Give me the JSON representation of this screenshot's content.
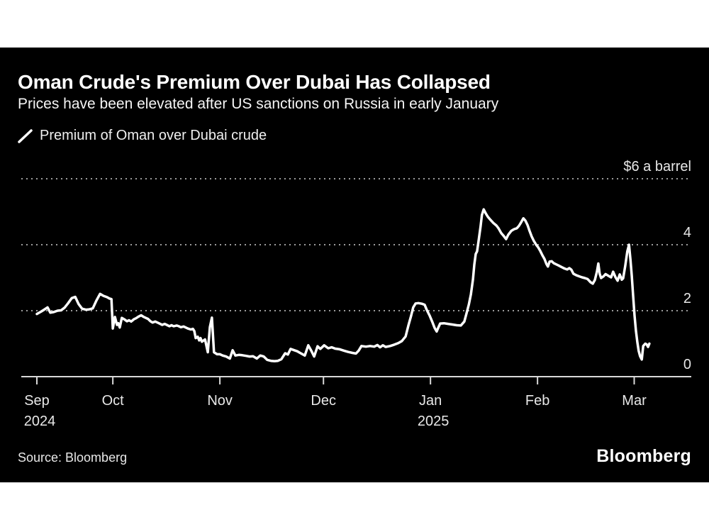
{
  "header": {
    "title": "Oman Crude's Premium Over Dubai Has Collapsed",
    "subtitle": "Prices have been elevated after US sanctions on Russia in early January"
  },
  "legend": {
    "label": "Premium of Oman over Dubai crude"
  },
  "footer": {
    "source": "Source: Bloomberg",
    "logo": "Bloomberg"
  },
  "colors": {
    "card_background": "#000000",
    "line": "#ffffff",
    "gridline": "#9c9c9c",
    "axis": "#d9d9d9",
    "tick_label": "#e8e8e8"
  },
  "chart_data": {
    "type": "line",
    "title": "Oman Crude's Premium Over Dubai Has Collapsed",
    "series_name": "Premium of Oman over Dubai crude",
    "unit": "$ a barrel",
    "start_date": "2024-09-09",
    "end_date": "2025-03-06",
    "ylim": [
      0,
      6.4
    ],
    "grid": "dotted-horizontal",
    "legend_position": "top-left",
    "y_ticks": [
      {
        "label": "$6 a barrel",
        "v": 6
      },
      {
        "label": "4",
        "v": 4
      },
      {
        "label": "2",
        "v": 2
      },
      {
        "label": "0",
        "v": 0
      }
    ],
    "x_ticks": [
      {
        "label": "Sep",
        "sublabel": "2024",
        "d": 0
      },
      {
        "label": "Oct",
        "sublabel": "",
        "d": 22
      },
      {
        "label": "Nov",
        "sublabel": "",
        "d": 53
      },
      {
        "label": "Dec",
        "sublabel": "",
        "d": 83
      },
      {
        "label": "Jan",
        "sublabel": "2025",
        "d": 114
      },
      {
        "label": "Feb",
        "sublabel": "",
        "d": 145
      },
      {
        "label": "Mar",
        "sublabel": "",
        "d": 173
      }
    ],
    "points": [
      [
        0,
        1.9
      ],
      [
        1.2,
        1.97
      ],
      [
        2.1,
        2.03
      ],
      [
        3.1,
        2.1
      ],
      [
        3.9,
        1.94
      ],
      [
        4.9,
        1.96
      ],
      [
        6,
        2.0
      ],
      [
        7,
        2.01
      ],
      [
        8,
        2.09
      ],
      [
        9,
        2.22
      ],
      [
        10.1,
        2.38
      ],
      [
        11.1,
        2.42
      ],
      [
        12.1,
        2.2
      ],
      [
        13.1,
        2.06
      ],
      [
        14.2,
        2.03
      ],
      [
        15.2,
        2.04
      ],
      [
        16.2,
        2.07
      ],
      [
        17.2,
        2.3
      ],
      [
        18.3,
        2.51
      ],
      [
        19.3,
        2.45
      ],
      [
        20.3,
        2.41
      ],
      [
        21,
        2.37
      ],
      [
        21.6,
        2.35
      ],
      [
        22,
        1.46
      ],
      [
        22.6,
        1.81
      ],
      [
        23.2,
        1.57
      ],
      [
        23.6,
        1.62
      ],
      [
        24,
        1.49
      ],
      [
        24.6,
        1.78
      ],
      [
        25.3,
        1.74
      ],
      [
        26.1,
        1.68
      ],
      [
        26.7,
        1.71
      ],
      [
        27.3,
        1.67
      ],
      [
        28.1,
        1.74
      ],
      [
        28.7,
        1.77
      ],
      [
        29.4,
        1.82
      ],
      [
        30.2,
        1.86
      ],
      [
        30.8,
        1.82
      ],
      [
        31.4,
        1.79
      ],
      [
        32.2,
        1.75
      ],
      [
        32.9,
        1.68
      ],
      [
        33.5,
        1.64
      ],
      [
        34.3,
        1.67
      ],
      [
        34.9,
        1.64
      ],
      [
        35.5,
        1.61
      ],
      [
        36.3,
        1.57
      ],
      [
        37,
        1.6
      ],
      [
        37.6,
        1.57
      ],
      [
        38.4,
        1.53
      ],
      [
        39,
        1.56
      ],
      [
        39.6,
        1.53
      ],
      [
        40.5,
        1.55
      ],
      [
        41.1,
        1.53
      ],
      [
        41.7,
        1.5
      ],
      [
        42.5,
        1.52
      ],
      [
        43.1,
        1.49
      ],
      [
        43.7,
        1.46
      ],
      [
        44.6,
        1.43
      ],
      [
        45.2,
        1.45
      ],
      [
        45.6,
        1.38
      ],
      [
        46,
        1.17
      ],
      [
        46.6,
        1.21
      ],
      [
        47,
        1.1
      ],
      [
        47.4,
        1.17
      ],
      [
        47.8,
        1.06
      ],
      [
        48.7,
        1.13
      ],
      [
        49.5,
        0.74
      ],
      [
        50.1,
        1.5
      ],
      [
        50.7,
        1.79
      ],
      [
        51.3,
        0.74
      ],
      [
        52.2,
        0.68
      ],
      [
        53,
        0.68
      ],
      [
        53.8,
        0.64
      ],
      [
        54.8,
        0.61
      ],
      [
        55.9,
        0.55
      ],
      [
        56.7,
        0.8
      ],
      [
        57.5,
        0.64
      ],
      [
        58.5,
        0.66
      ],
      [
        59.5,
        0.65
      ],
      [
        60.6,
        0.63
      ],
      [
        61.6,
        0.61
      ],
      [
        62.6,
        0.62
      ],
      [
        63.7,
        0.55
      ],
      [
        64.7,
        0.64
      ],
      [
        65.7,
        0.61
      ],
      [
        66.7,
        0.51
      ],
      [
        67.8,
        0.48
      ],
      [
        68.8,
        0.47
      ],
      [
        69.8,
        0.48
      ],
      [
        70.8,
        0.53
      ],
      [
        71.9,
        0.71
      ],
      [
        72.7,
        0.67
      ],
      [
        73.5,
        0.84
      ],
      [
        74.3,
        0.81
      ],
      [
        75.4,
        0.77
      ],
      [
        76.4,
        0.71
      ],
      [
        77.6,
        0.64
      ],
      [
        78.6,
        0.95
      ],
      [
        79.5,
        0.78
      ],
      [
        80.3,
        0.61
      ],
      [
        81.3,
        0.92
      ],
      [
        82.1,
        0.84
      ],
      [
        83.2,
        0.95
      ],
      [
        84.4,
        0.86
      ],
      [
        85.4,
        0.89
      ],
      [
        86.4,
        0.85
      ],
      [
        87.7,
        0.83
      ],
      [
        88.9,
        0.79
      ],
      [
        90.1,
        0.75
      ],
      [
        91.4,
        0.72
      ],
      [
        92.4,
        0.7
      ],
      [
        93.2,
        0.79
      ],
      [
        94,
        0.93
      ],
      [
        95.3,
        0.91
      ],
      [
        96.5,
        0.93
      ],
      [
        97.7,
        0.91
      ],
      [
        98.6,
        0.96
      ],
      [
        99.4,
        0.89
      ],
      [
        100.2,
        0.95
      ],
      [
        101,
        0.9
      ],
      [
        102.3,
        0.93
      ],
      [
        103.5,
        0.97
      ],
      [
        104.7,
        1.02
      ],
      [
        105.7,
        1.08
      ],
      [
        106.8,
        1.22
      ],
      [
        107.6,
        1.55
      ],
      [
        108.4,
        1.85
      ],
      [
        109,
        2.1
      ],
      [
        109.7,
        2.22
      ],
      [
        110.5,
        2.23
      ],
      [
        111.5,
        2.21
      ],
      [
        112.3,
        2.18
      ],
      [
        112.9,
        2.03
      ],
      [
        113.8,
        1.84
      ],
      [
        114.6,
        1.64
      ],
      [
        115.2,
        1.48
      ],
      [
        115.8,
        1.37
      ],
      [
        116.2,
        1.47
      ],
      [
        116.8,
        1.61
      ],
      [
        117.9,
        1.62
      ],
      [
        119.1,
        1.6
      ],
      [
        120.3,
        1.58
      ],
      [
        121.6,
        1.56
      ],
      [
        122.8,
        1.55
      ],
      [
        123.8,
        1.67
      ],
      [
        124.4,
        1.9
      ],
      [
        125.1,
        2.18
      ],
      [
        125.7,
        2.5
      ],
      [
        126.3,
        2.95
      ],
      [
        126.7,
        3.4
      ],
      [
        127.1,
        3.72
      ],
      [
        127.5,
        3.8
      ],
      [
        127.9,
        4.1
      ],
      [
        128.5,
        4.55
      ],
      [
        128.9,
        4.9
      ],
      [
        129.4,
        5.07
      ],
      [
        130,
        4.95
      ],
      [
        130.6,
        4.85
      ],
      [
        131.4,
        4.75
      ],
      [
        132.2,
        4.66
      ],
      [
        133.1,
        4.58
      ],
      [
        133.7,
        4.5
      ],
      [
        134.5,
        4.35
      ],
      [
        135.1,
        4.28
      ],
      [
        135.9,
        4.17
      ],
      [
        136.5,
        4.3
      ],
      [
        137.4,
        4.42
      ],
      [
        138.2,
        4.47
      ],
      [
        139,
        4.5
      ],
      [
        139.6,
        4.57
      ],
      [
        140.2,
        4.67
      ],
      [
        140.9,
        4.8
      ],
      [
        141.5,
        4.73
      ],
      [
        142.1,
        4.6
      ],
      [
        142.7,
        4.42
      ],
      [
        143.3,
        4.25
      ],
      [
        143.9,
        4.12
      ],
      [
        144.6,
        4.0
      ],
      [
        145.2,
        3.92
      ],
      [
        145.8,
        3.81
      ],
      [
        146.4,
        3.68
      ],
      [
        147,
        3.57
      ],
      [
        147.6,
        3.41
      ],
      [
        148,
        3.34
      ],
      [
        148.5,
        3.49
      ],
      [
        149.1,
        3.5
      ],
      [
        149.7,
        3.44
      ],
      [
        150.3,
        3.41
      ],
      [
        151.1,
        3.37
      ],
      [
        152,
        3.32
      ],
      [
        152.8,
        3.28
      ],
      [
        153.6,
        3.25
      ],
      [
        154.2,
        3.29
      ],
      [
        154.8,
        3.24
      ],
      [
        155.4,
        3.12
      ],
      [
        156.3,
        3.07
      ],
      [
        157.1,
        3.04
      ],
      [
        157.9,
        3.01
      ],
      [
        158.7,
        2.99
      ],
      [
        159.5,
        2.96
      ],
      [
        160.4,
        2.86
      ],
      [
        161,
        2.82
      ],
      [
        161.6,
        2.93
      ],
      [
        162.2,
        3.18
      ],
      [
        162.6,
        3.43
      ],
      [
        163,
        3.12
      ],
      [
        163.4,
        2.99
      ],
      [
        164.1,
        3.04
      ],
      [
        164.7,
        3.11
      ],
      [
        165.5,
        3.06
      ],
      [
        166.3,
        3.01
      ],
      [
        166.9,
        3.18
      ],
      [
        167.6,
        3.01
      ],
      [
        168.2,
        2.91
      ],
      [
        168.8,
        3.1
      ],
      [
        169.4,
        2.94
      ],
      [
        169.8,
        2.98
      ],
      [
        170.4,
        3.35
      ],
      [
        171,
        3.8
      ],
      [
        171.5,
        4.0
      ],
      [
        171.9,
        3.55
      ],
      [
        172.3,
        3.05
      ],
      [
        172.7,
        2.45
      ],
      [
        173.1,
        1.85
      ],
      [
        173.5,
        1.4
      ],
      [
        173.9,
        1.05
      ],
      [
        174.3,
        0.78
      ],
      [
        174.7,
        0.62
      ],
      [
        175.2,
        0.52
      ],
      [
        175.6,
        0.93
      ],
      [
        176.2,
        1.0
      ],
      [
        176.6,
        0.98
      ],
      [
        177,
        0.9
      ],
      [
        177.4,
        1.0
      ]
    ]
  }
}
